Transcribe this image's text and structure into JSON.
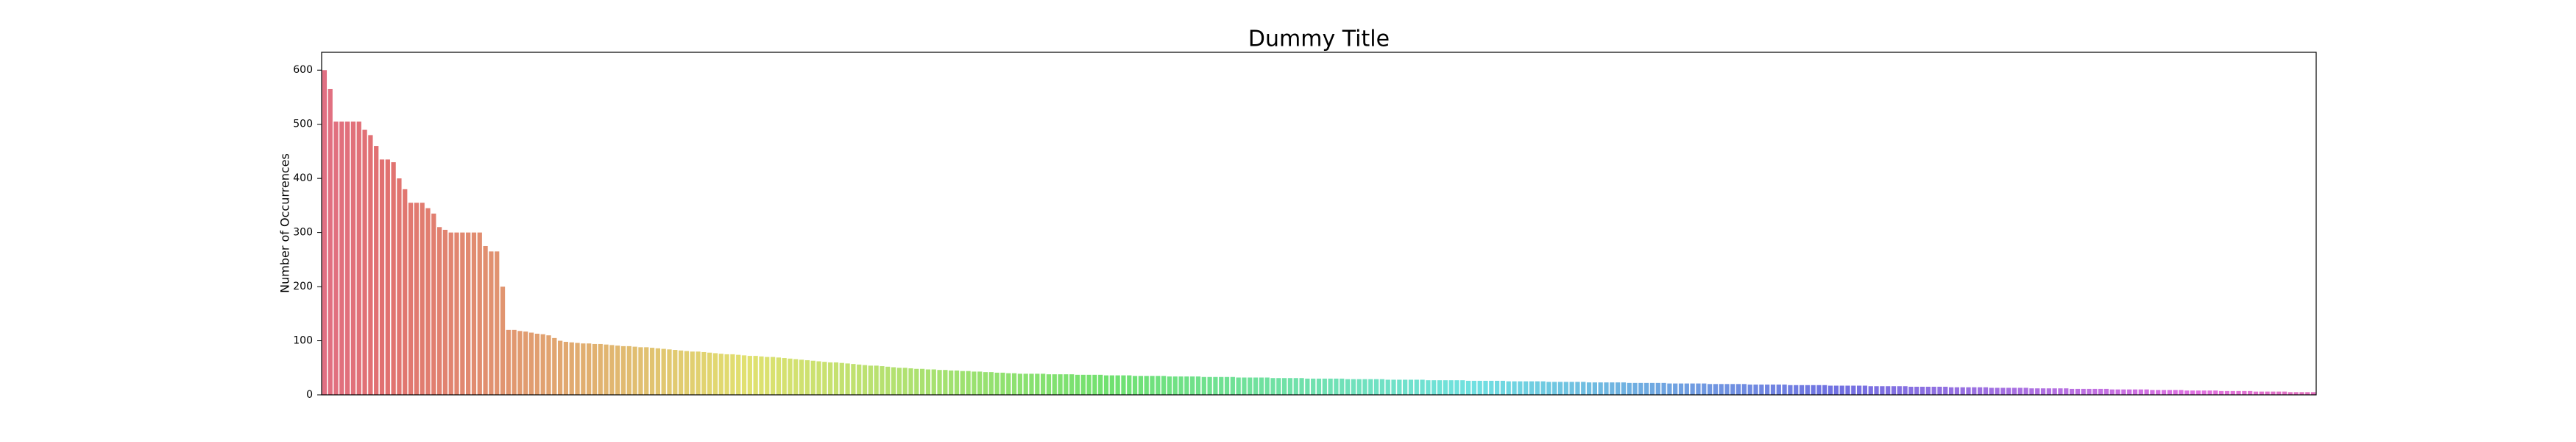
{
  "chart_data": {
    "type": "bar",
    "title": "Dummy Title",
    "y_label": "Number of Occurrences",
    "palette": "husl",
    "values": [
      600,
      565,
      505,
      505,
      505,
      505,
      505,
      490,
      480,
      460,
      435,
      435,
      430,
      400,
      380,
      355,
      355,
      355,
      345,
      335,
      310,
      305,
      300,
      300,
      300,
      300,
      300,
      300,
      275,
      265,
      265,
      200,
      120,
      120,
      118,
      117,
      115,
      113,
      112,
      110,
      105,
      100,
      98,
      97,
      96,
      95,
      95,
      94,
      94,
      93,
      92,
      91,
      90,
      90,
      89,
      88,
      88,
      87,
      86,
      85,
      84,
      83,
      82,
      81,
      80,
      80,
      79,
      78,
      77,
      76,
      75,
      75,
      74,
      73,
      72,
      72,
      71,
      70,
      70,
      69,
      68,
      67,
      66,
      65,
      64,
      63,
      62,
      61,
      60,
      60,
      59,
      58,
      57,
      56,
      55,
      54,
      54,
      53,
      52,
      51,
      50,
      50,
      49,
      48,
      48,
      47,
      47,
      46,
      46,
      45,
      45,
      44,
      44,
      43,
      43,
      42,
      42,
      41,
      41,
      40,
      40,
      39,
      39,
      39,
      39,
      39,
      38,
      38,
      38,
      38,
      38,
      37,
      37,
      37,
      37,
      37,
      36,
      36,
      36,
      36,
      36,
      35,
      35,
      35,
      35,
      35,
      35,
      34,
      34,
      34,
      34,
      34,
      34,
      33,
      33,
      33,
      33,
      33,
      33,
      32,
      32,
      32,
      32,
      32,
      32,
      31,
      31,
      31,
      31,
      31,
      31,
      30,
      30,
      30,
      30,
      30,
      30,
      30,
      29,
      29,
      29,
      29,
      29,
      29,
      29,
      28,
      28,
      28,
      28,
      28,
      28,
      28,
      27,
      27,
      27,
      27,
      27,
      27,
      27,
      26,
      26,
      26,
      26,
      26,
      26,
      26,
      25,
      25,
      25,
      25,
      25,
      25,
      25,
      24,
      24,
      24,
      24,
      24,
      24,
      24,
      23,
      23,
      23,
      23,
      23,
      23,
      23,
      22,
      22,
      22,
      22,
      22,
      22,
      22,
      21,
      21,
      21,
      21,
      21,
      21,
      21,
      20,
      20,
      20,
      20,
      20,
      20,
      20,
      19,
      19,
      19,
      19,
      19,
      19,
      19,
      18,
      18,
      18,
      18,
      18,
      18,
      18,
      17,
      17,
      17,
      17,
      17,
      17,
      17,
      16,
      16,
      16,
      16,
      16,
      16,
      16,
      15,
      15,
      15,
      15,
      15,
      15,
      15,
      14,
      14,
      14,
      14,
      14,
      14,
      14,
      13,
      13,
      13,
      13,
      13,
      13,
      13,
      12,
      12,
      12,
      12,
      12,
      12,
      12,
      11,
      11,
      11,
      11,
      11,
      11,
      11,
      10,
      10,
      10,
      10,
      10,
      10,
      10,
      9,
      9,
      9,
      9,
      9,
      9,
      8,
      8,
      8,
      8,
      8,
      8,
      7,
      7,
      7,
      7,
      7,
      7,
      6,
      6,
      6,
      6,
      6,
      6,
      5,
      5,
      5,
      5,
      5
    ],
    "ylim": [
      0,
      633
    ],
    "yticks": [
      0,
      100,
      200,
      300,
      400,
      500,
      600
    ],
    "grid": false
  }
}
